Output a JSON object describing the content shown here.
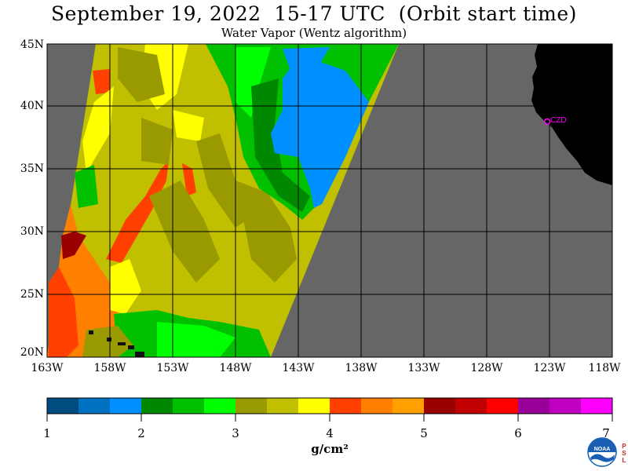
{
  "title": "September 19, 2022  15-17 UTC  (Orbit start time)",
  "subtitle": "Water Vapor (Wentz algorithm)",
  "map": {
    "lat_labels": [
      "45N",
      "40N",
      "35N",
      "30N",
      "25N",
      "20N"
    ],
    "lon_labels": [
      "163W",
      "158W",
      "153W",
      "148W",
      "143W",
      "138W",
      "133W",
      "128W",
      "123W",
      "118W"
    ],
    "station_label": "CZD",
    "colors": {
      "nodata": "#666666",
      "land": "#000000",
      "station": "#ff00ff"
    }
  },
  "colorbar": {
    "unit": "g/cm²",
    "tick_labels": [
      "1",
      "2",
      "3",
      "4",
      "5",
      "6",
      "7"
    ],
    "colors": [
      "#004c80",
      "#0070c0",
      "#0090ff",
      "#008800",
      "#00c000",
      "#00ff00",
      "#999900",
      "#c0c000",
      "#ffff00",
      "#ff4000",
      "#ff8000",
      "#ffa000",
      "#990000",
      "#c00000",
      "#ff0000",
      "#990099",
      "#c000c0",
      "#ff00ff"
    ]
  },
  "logo": {
    "org": "NOAA",
    "side_text": "PSL"
  }
}
